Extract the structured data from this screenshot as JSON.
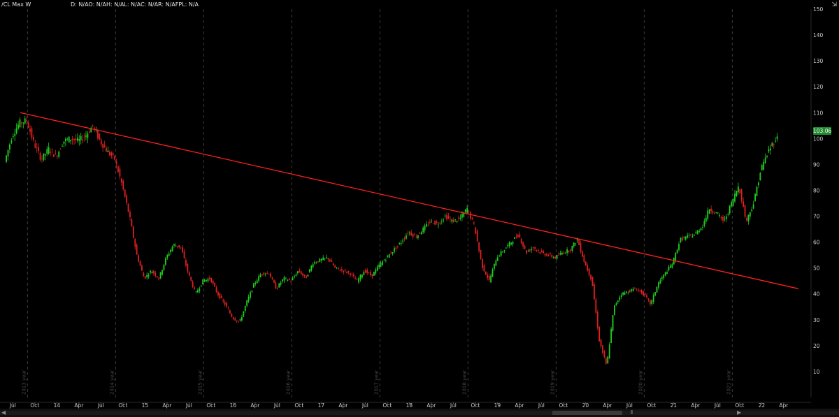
{
  "header": {
    "symbol_label": "/CL Max W",
    "study_label": "D: N/AO: N/AH: N/AL: N/AC: N/AR: N/AFPL: N/A"
  },
  "last_price": "103.06",
  "colors": {
    "background": "#000000",
    "up_candle": "#20d020",
    "down_candle": "#e02020",
    "trendline": "#ff2020",
    "axis_text": "#cfcfcf",
    "badge": "#1e8a2c"
  },
  "chart_data": {
    "type": "candlestick",
    "ylim": [
      0,
      150
    ],
    "y_ticks": [
      10,
      20,
      30,
      40,
      50,
      60,
      70,
      80,
      90,
      100,
      110,
      120,
      130,
      140,
      150
    ],
    "x_tick_labels": [
      "Jul",
      "Oct",
      "14",
      "Apr",
      "Jul",
      "Oct",
      "15",
      "Apr",
      "Jul",
      "Oct",
      "16",
      "Apr",
      "Jul",
      "Oct",
      "17",
      "Apr",
      "Jul",
      "Oct",
      "18",
      "Apr",
      "Jul",
      "Oct",
      "19",
      "Apr",
      "Jul",
      "Oct",
      "20",
      "Apr",
      "Jul",
      "Oct",
      "21",
      "Apr",
      "Jul",
      "Oct",
      "22",
      "Apr"
    ],
    "year_labels": [
      "2013 year",
      "2014 year",
      "2015 year",
      "2016 year",
      "2017 year",
      "2018 year",
      "2019 year",
      "2020 year",
      "2021 year"
    ],
    "x_start": "2013-06",
    "price_path": [
      {
        "date": "2013-06",
        "price": 91
      },
      {
        "date": "2013-07",
        "price": 101
      },
      {
        "date": "2013-08",
        "price": 106
      },
      {
        "date": "2013-09",
        "price": 107
      },
      {
        "date": "2013-10",
        "price": 98
      },
      {
        "date": "2013-11",
        "price": 92
      },
      {
        "date": "2013-12",
        "price": 96
      },
      {
        "date": "2014-01",
        "price": 93
      },
      {
        "date": "2014-02",
        "price": 99
      },
      {
        "date": "2014-03",
        "price": 100
      },
      {
        "date": "2014-04",
        "price": 99
      },
      {
        "date": "2014-05",
        "price": 101
      },
      {
        "date": "2014-06",
        "price": 105
      },
      {
        "date": "2014-07",
        "price": 99
      },
      {
        "date": "2014-08",
        "price": 95
      },
      {
        "date": "2014-09",
        "price": 92
      },
      {
        "date": "2014-10",
        "price": 82
      },
      {
        "date": "2014-11",
        "price": 70
      },
      {
        "date": "2014-12",
        "price": 55
      },
      {
        "date": "2015-01",
        "price": 46
      },
      {
        "date": "2015-02",
        "price": 49
      },
      {
        "date": "2015-03",
        "price": 46
      },
      {
        "date": "2015-04",
        "price": 54
      },
      {
        "date": "2015-05",
        "price": 59
      },
      {
        "date": "2015-06",
        "price": 58
      },
      {
        "date": "2015-07",
        "price": 48
      },
      {
        "date": "2015-08",
        "price": 40
      },
      {
        "date": "2015-09",
        "price": 45
      },
      {
        "date": "2015-10",
        "price": 46
      },
      {
        "date": "2015-11",
        "price": 40
      },
      {
        "date": "2015-12",
        "price": 36
      },
      {
        "date": "2016-01",
        "price": 31
      },
      {
        "date": "2016-02",
        "price": 29
      },
      {
        "date": "2016-03",
        "price": 37
      },
      {
        "date": "2016-04",
        "price": 44
      },
      {
        "date": "2016-05",
        "price": 48
      },
      {
        "date": "2016-06",
        "price": 48
      },
      {
        "date": "2016-07",
        "price": 42
      },
      {
        "date": "2016-08",
        "price": 46
      },
      {
        "date": "2016-09",
        "price": 45
      },
      {
        "date": "2016-10",
        "price": 49
      },
      {
        "date": "2016-11",
        "price": 46
      },
      {
        "date": "2016-12",
        "price": 52
      },
      {
        "date": "2017-01",
        "price": 53
      },
      {
        "date": "2017-02",
        "price": 54
      },
      {
        "date": "2017-03",
        "price": 50
      },
      {
        "date": "2017-04",
        "price": 49
      },
      {
        "date": "2017-05",
        "price": 48
      },
      {
        "date": "2017-06",
        "price": 45
      },
      {
        "date": "2017-07",
        "price": 49
      },
      {
        "date": "2017-08",
        "price": 47
      },
      {
        "date": "2017-09",
        "price": 51
      },
      {
        "date": "2017-10",
        "price": 54
      },
      {
        "date": "2017-11",
        "price": 57
      },
      {
        "date": "2017-12",
        "price": 60
      },
      {
        "date": "2018-01",
        "price": 64
      },
      {
        "date": "2018-02",
        "price": 62
      },
      {
        "date": "2018-03",
        "price": 65
      },
      {
        "date": "2018-04",
        "price": 68
      },
      {
        "date": "2018-05",
        "price": 67
      },
      {
        "date": "2018-06",
        "price": 70
      },
      {
        "date": "2018-07",
        "price": 68
      },
      {
        "date": "2018-08",
        "price": 69
      },
      {
        "date": "2018-09",
        "price": 73
      },
      {
        "date": "2018-10",
        "price": 66
      },
      {
        "date": "2018-11",
        "price": 51
      },
      {
        "date": "2018-12",
        "price": 45
      },
      {
        "date": "2019-01",
        "price": 54
      },
      {
        "date": "2019-02",
        "price": 57
      },
      {
        "date": "2019-03",
        "price": 60
      },
      {
        "date": "2019-04",
        "price": 63
      },
      {
        "date": "2019-05",
        "price": 56
      },
      {
        "date": "2019-06",
        "price": 58
      },
      {
        "date": "2019-07",
        "price": 56
      },
      {
        "date": "2019-08",
        "price": 55
      },
      {
        "date": "2019-09",
        "price": 54
      },
      {
        "date": "2019-10",
        "price": 56
      },
      {
        "date": "2019-11",
        "price": 57
      },
      {
        "date": "2019-12",
        "price": 61
      },
      {
        "date": "2020-01",
        "price": 52
      },
      {
        "date": "2020-02",
        "price": 45
      },
      {
        "date": "2020-03",
        "price": 22
      },
      {
        "date": "2020-04",
        "price": 12
      },
      {
        "date": "2020-05",
        "price": 35
      },
      {
        "date": "2020-06",
        "price": 40
      },
      {
        "date": "2020-07",
        "price": 41
      },
      {
        "date": "2020-08",
        "price": 42
      },
      {
        "date": "2020-09",
        "price": 40
      },
      {
        "date": "2020-10",
        "price": 36
      },
      {
        "date": "2020-11",
        "price": 44
      },
      {
        "date": "2020-12",
        "price": 48
      },
      {
        "date": "2021-01",
        "price": 52
      },
      {
        "date": "2021-02",
        "price": 61
      },
      {
        "date": "2021-03",
        "price": 62
      },
      {
        "date": "2021-04",
        "price": 63
      },
      {
        "date": "2021-05",
        "price": 66
      },
      {
        "date": "2021-06",
        "price": 73
      },
      {
        "date": "2021-07",
        "price": 71
      },
      {
        "date": "2021-08",
        "price": 68
      },
      {
        "date": "2021-09",
        "price": 75
      },
      {
        "date": "2021-10",
        "price": 82
      },
      {
        "date": "2021-11",
        "price": 68
      },
      {
        "date": "2021-12",
        "price": 75
      },
      {
        "date": "2022-01",
        "price": 88
      },
      {
        "date": "2022-02",
        "price": 95
      },
      {
        "date": "2022-03",
        "price": 100
      }
    ],
    "trendline": {
      "start": {
        "date": "2013-08",
        "price": 110
      },
      "end": {
        "date": "2022-06",
        "price": 42
      }
    }
  }
}
